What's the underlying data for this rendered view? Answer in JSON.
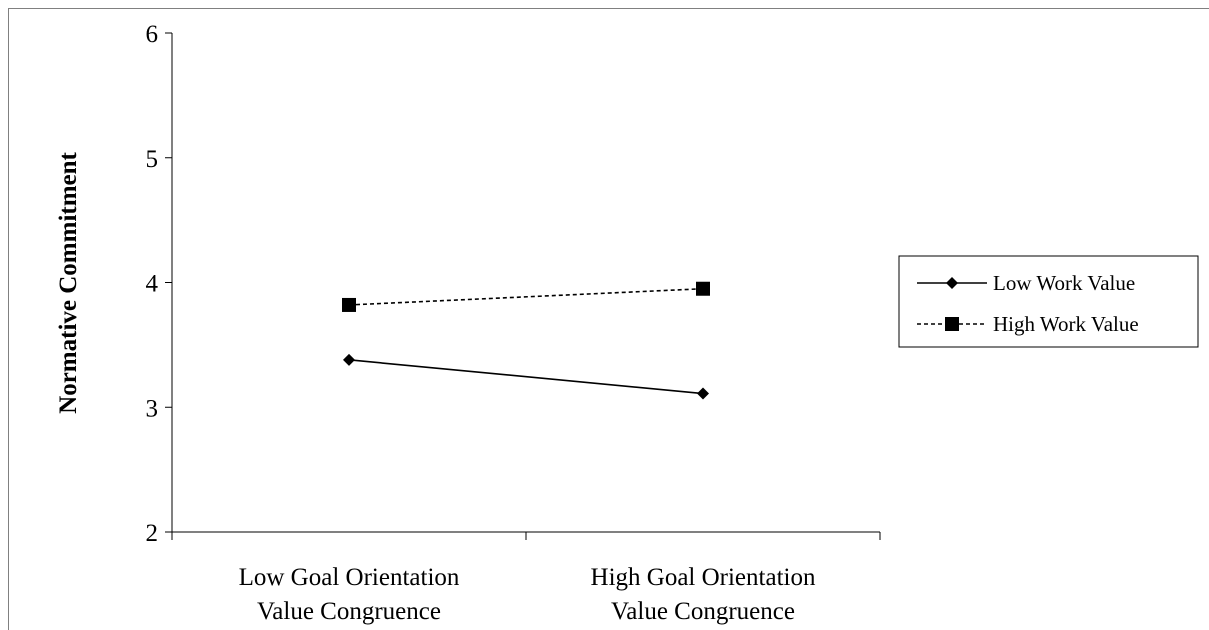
{
  "chart_data": {
    "type": "line",
    "title": "",
    "xlabel": "",
    "ylabel": "Normative Commitment",
    "ylim": [
      2,
      6
    ],
    "yticks": [
      2,
      3,
      4,
      5,
      6
    ],
    "categories": [
      [
        "Low Goal Orientation",
        "Value Congruence"
      ],
      [
        "High Goal Orientation",
        "Value Congruence"
      ]
    ],
    "series": [
      {
        "name": "Low Work Value",
        "values": [
          3.38,
          3.11
        ],
        "line_style": "solid",
        "marker": "diamond",
        "color": "#000000"
      },
      {
        "name": "High Work Value",
        "values": [
          3.82,
          3.95
        ],
        "line_style": "dashed",
        "marker": "square",
        "color": "#000000"
      }
    ],
    "grid": false,
    "legend_position": "right"
  }
}
